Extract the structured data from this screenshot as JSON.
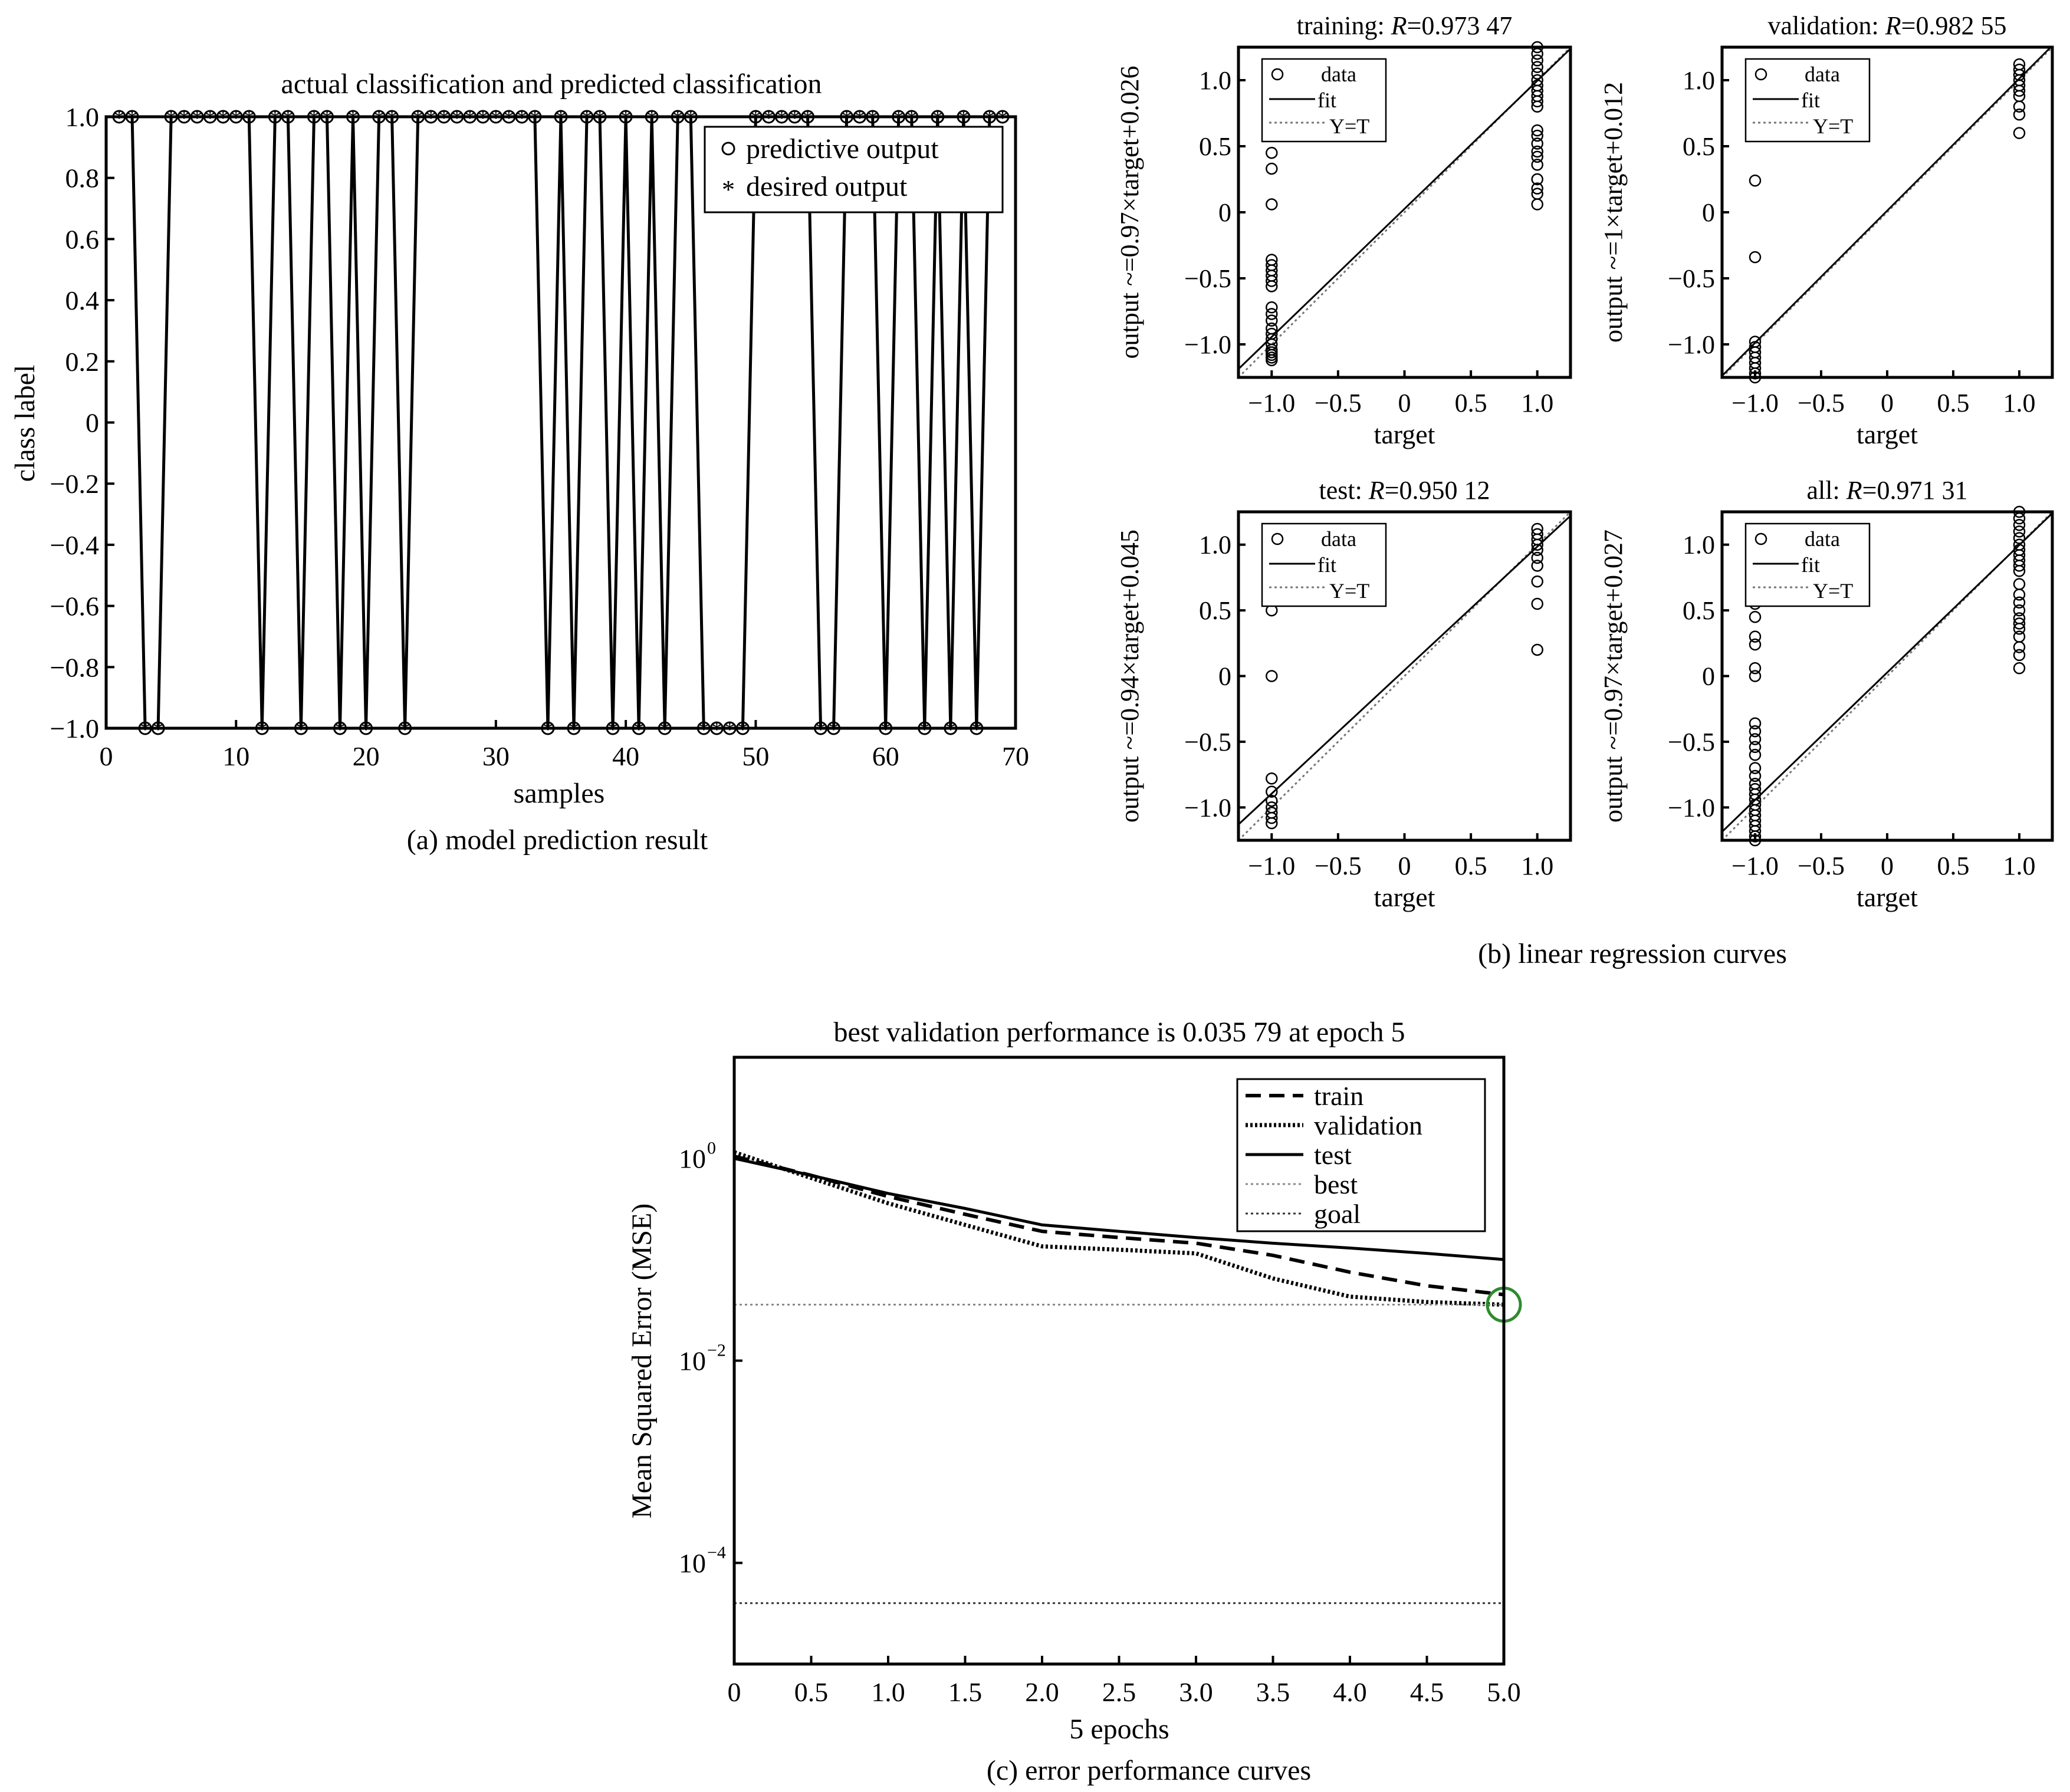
{
  "chart_data": [
    {
      "type": "scatter",
      "title": "actual classification and predicted classification",
      "caption": "(a) model prediction result",
      "xlabel": "samples",
      "ylabel": "class label",
      "xlim": [
        0,
        70
      ],
      "ylim": [
        -1.0,
        1.0
      ],
      "xticks": [
        "0",
        "10",
        "20",
        "30",
        "40",
        "50",
        "60",
        "70"
      ],
      "yticks": [
        "1.0",
        "0.8",
        "0.6",
        "0.4",
        "0.2",
        "0",
        "−0.2",
        "−0.4",
        "−0.6",
        "−0.8",
        "−1.0"
      ],
      "legend_position": "top-right",
      "series": [
        {
          "name": "predictive output",
          "marker": "circle",
          "x": [
            1,
            2,
            3,
            4,
            5,
            6,
            7,
            8,
            9,
            10,
            11,
            12,
            13,
            14,
            15,
            16,
            17,
            18,
            19,
            20,
            21,
            22,
            23,
            24,
            25,
            26,
            27,
            28,
            29,
            30,
            31,
            32,
            33,
            34,
            35,
            36,
            37,
            38,
            39,
            40,
            41,
            42,
            43,
            44,
            45,
            46,
            47,
            48,
            49,
            50,
            51,
            52,
            53,
            54,
            55,
            56,
            57,
            58,
            59,
            60,
            61,
            62,
            63,
            64,
            65,
            66,
            67,
            68,
            69
          ],
          "y": [
            1,
            1,
            -1,
            -1,
            1,
            1,
            1,
            1,
            1,
            1,
            1,
            -1,
            1,
            1,
            -1,
            1,
            1,
            -1,
            1,
            -1,
            1,
            1,
            -1,
            1,
            1,
            1,
            1,
            1,
            1,
            1,
            1,
            1,
            1,
            -1,
            1,
            -1,
            1,
            1,
            -1,
            1,
            -1,
            1,
            -1,
            1,
            1,
            -1,
            -1,
            -1,
            -1,
            1,
            1,
            1,
            1,
            1,
            -1,
            -1,
            1,
            1,
            1,
            -1,
            1,
            1,
            -1,
            1,
            -1,
            1,
            -1,
            1,
            1
          ]
        },
        {
          "name": "desired output",
          "marker": "star",
          "x": [
            1,
            2,
            3,
            4,
            5,
            6,
            7,
            8,
            9,
            10,
            11,
            12,
            13,
            14,
            15,
            16,
            17,
            18,
            19,
            20,
            21,
            22,
            23,
            24,
            25,
            26,
            27,
            28,
            29,
            30,
            31,
            32,
            33,
            34,
            35,
            36,
            37,
            38,
            39,
            40,
            41,
            42,
            43,
            44,
            45,
            46,
            47,
            48,
            49,
            50,
            51,
            52,
            53,
            54,
            55,
            56,
            57,
            58,
            59,
            60,
            61,
            62,
            63,
            64,
            65,
            66,
            67,
            68,
            69
          ],
          "y": [
            1,
            1,
            -1,
            -1,
            1,
            1,
            1,
            1,
            1,
            1,
            1,
            -1,
            1,
            1,
            -1,
            1,
            1,
            -1,
            1,
            -1,
            1,
            1,
            -1,
            1,
            1,
            1,
            1,
            1,
            1,
            1,
            1,
            1,
            1,
            -1,
            1,
            -1,
            1,
            1,
            -1,
            1,
            -1,
            1,
            -1,
            1,
            1,
            -1,
            -1,
            -1,
            -1,
            1,
            1,
            1,
            1,
            1,
            -1,
            -1,
            1,
            1,
            1,
            -1,
            1,
            1,
            -1,
            1,
            -1,
            1,
            -1,
            1,
            1
          ]
        }
      ]
    },
    {
      "type": "scatter",
      "group_caption": "(b) linear regression curves",
      "panels": [
        {
          "title_prefix": "training: ",
          "title_var": "R",
          "title_value": "=0.973 47",
          "ylabel": "output ~=0.97×target+0.026",
          "xlabel": "target",
          "slope": 0.97,
          "intercept": 0.026,
          "xlim": [
            -1.25,
            1.25
          ],
          "ylim": [
            -1.25,
            1.25
          ],
          "xticks": [
            "−1.0",
            "−0.5",
            "0",
            "0.5",
            "1.0"
          ],
          "yticks": [
            "1.0",
            "0.5",
            "0",
            "−0.5",
            "−1.0"
          ],
          "legend": [
            "data",
            "fit",
            "Y=T"
          ],
          "points_neg": [
            0.45,
            0.33,
            0.06,
            -0.36,
            -0.4,
            -0.44,
            -0.48,
            -0.52,
            -0.56,
            -0.72,
            -0.77,
            -0.82,
            -0.88,
            -0.92,
            -0.96,
            -1.0,
            -1.04,
            -1.06,
            -1.08,
            -1.1,
            -1.12
          ],
          "points_pos": [
            1.25,
            1.2,
            1.15,
            1.1,
            1.05,
            1.0,
            0.96,
            0.92,
            0.88,
            0.84,
            0.8,
            0.62,
            0.58,
            0.52,
            0.46,
            0.42,
            0.36,
            0.25,
            0.18,
            0.14,
            0.06
          ]
        },
        {
          "title_prefix": "validation: ",
          "title_var": "R",
          "title_value": "=0.982 55",
          "ylabel": "output ~=1×target+0.012",
          "xlabel": "target",
          "slope": 1.0,
          "intercept": 0.012,
          "xlim": [
            -1.25,
            1.25
          ],
          "ylim": [
            -1.25,
            1.25
          ],
          "xticks": [
            "−1.0",
            "−0.5",
            "0",
            "0.5",
            "1.0"
          ],
          "yticks": [
            "1.0",
            "0.5",
            "0",
            "−0.5",
            "−1.0"
          ],
          "legend": [
            "data",
            "fit",
            "Y=T"
          ],
          "points_neg": [
            0.24,
            -0.34,
            -0.98,
            -1.02,
            -1.06,
            -1.1,
            -1.14,
            -1.18,
            -1.22,
            -1.25
          ],
          "points_pos": [
            1.12,
            1.08,
            1.04,
            1.0,
            0.96,
            0.92,
            0.88,
            0.8,
            0.74,
            0.6
          ]
        },
        {
          "title_prefix": "test: ",
          "title_var": "R",
          "title_value": "=0.950 12",
          "ylabel": "output ~=0.94×target+0.045",
          "xlabel": "target",
          "slope": 0.94,
          "intercept": 0.045,
          "xlim": [
            -1.25,
            1.25
          ],
          "ylim": [
            -1.25,
            1.25
          ],
          "xticks": [
            "−1.0",
            "−0.5",
            "0",
            "0.5",
            "1.0"
          ],
          "yticks": [
            "1.0",
            "0.5",
            "0",
            "−0.5",
            "−1.0"
          ],
          "legend": [
            "data",
            "fit",
            "Y=T"
          ],
          "points_neg": [
            0.5,
            0.0,
            -0.78,
            -0.88,
            -0.95,
            -1.0,
            -1.04,
            -1.08,
            -1.12
          ],
          "points_pos": [
            1.12,
            1.08,
            1.04,
            1.0,
            0.96,
            0.9,
            0.84,
            0.72,
            0.55,
            0.2
          ]
        },
        {
          "title_prefix": "all: ",
          "title_var": "R",
          "title_value": "=0.971 31",
          "ylabel": "output ~=0.97×target+0.027",
          "xlabel": "target",
          "slope": 0.97,
          "intercept": 0.027,
          "xlim": [
            -1.25,
            1.25
          ],
          "ylim": [
            -1.25,
            1.25
          ],
          "xticks": [
            "−1.0",
            "−0.5",
            "0",
            "0.5",
            "1.0"
          ],
          "yticks": [
            "1.0",
            "0.5",
            "0",
            "−0.5",
            "−1.0"
          ],
          "legend": [
            "data",
            "fit",
            "Y=T"
          ],
          "points_neg": [
            0.55,
            0.45,
            0.3,
            0.24,
            0.06,
            0.0,
            -0.36,
            -0.42,
            -0.48,
            -0.54,
            -0.6,
            -0.7,
            -0.76,
            -0.82,
            -0.86,
            -0.9,
            -0.94,
            -0.98,
            -1.02,
            -1.06,
            -1.1,
            -1.14,
            -1.18,
            -1.22,
            -1.25
          ],
          "points_pos": [
            1.25,
            1.2,
            1.15,
            1.1,
            1.05,
            1.0,
            0.96,
            0.92,
            0.88,
            0.84,
            0.8,
            0.7,
            0.62,
            0.56,
            0.5,
            0.44,
            0.4,
            0.36,
            0.3,
            0.22,
            0.16,
            0.06
          ]
        }
      ]
    },
    {
      "type": "line",
      "title": "best validation performance is 0.035 79 at epoch 5",
      "caption": "(c) error performance curves",
      "xlabel": "5 epochs",
      "ylabel": "Mean Squared Error (MSE)",
      "y_scale": "log",
      "xlim": [
        0,
        5
      ],
      "ylim": [
        1e-05,
        10
      ],
      "xticks": [
        "0",
        "0.5",
        "1.0",
        "1.5",
        "2.0",
        "2.5",
        "3.0",
        "3.5",
        "4.0",
        "4.5",
        "5.0"
      ],
      "yticks": [
        {
          "base": "10",
          "exp": "0",
          "value": 1
        },
        {
          "base": "10",
          "exp": "−2",
          "value": 0.01
        },
        {
          "base": "10",
          "exp": "−4",
          "value": 0.0001
        }
      ],
      "legend_position": "top-right",
      "series": [
        {
          "name": "train",
          "style": "dashed",
          "x": [
            0,
            0.5,
            1,
            1.5,
            2,
            2.5,
            3,
            3.5,
            4,
            4.5,
            5
          ],
          "y": [
            1.05,
            0.68,
            0.42,
            0.28,
            0.19,
            0.165,
            0.145,
            0.11,
            0.075,
            0.055,
            0.045
          ]
        },
        {
          "name": "validation",
          "style": "dotted-thick",
          "x": [
            0,
            0.5,
            1,
            1.5,
            2,
            2.5,
            3,
            3.5,
            4,
            4.5,
            5
          ],
          "y": [
            1.15,
            0.64,
            0.36,
            0.22,
            0.135,
            0.125,
            0.115,
            0.065,
            0.043,
            0.038,
            0.0358
          ]
        },
        {
          "name": "test",
          "style": "solid",
          "x": [
            0,
            0.5,
            1,
            1.5,
            2,
            2.5,
            3,
            3.5,
            4,
            4.5,
            5
          ],
          "y": [
            1.0,
            0.68,
            0.45,
            0.32,
            0.22,
            0.19,
            0.165,
            0.145,
            0.13,
            0.115,
            0.1
          ]
        },
        {
          "name": "best",
          "style": "dotted-gray",
          "y_const": 0.0358
        },
        {
          "name": "goal",
          "style": "dotted",
          "y_const": 4e-05
        }
      ],
      "best_marker": {
        "x": 5,
        "y": 0.0358,
        "color": "#2e8b2e"
      }
    }
  ]
}
